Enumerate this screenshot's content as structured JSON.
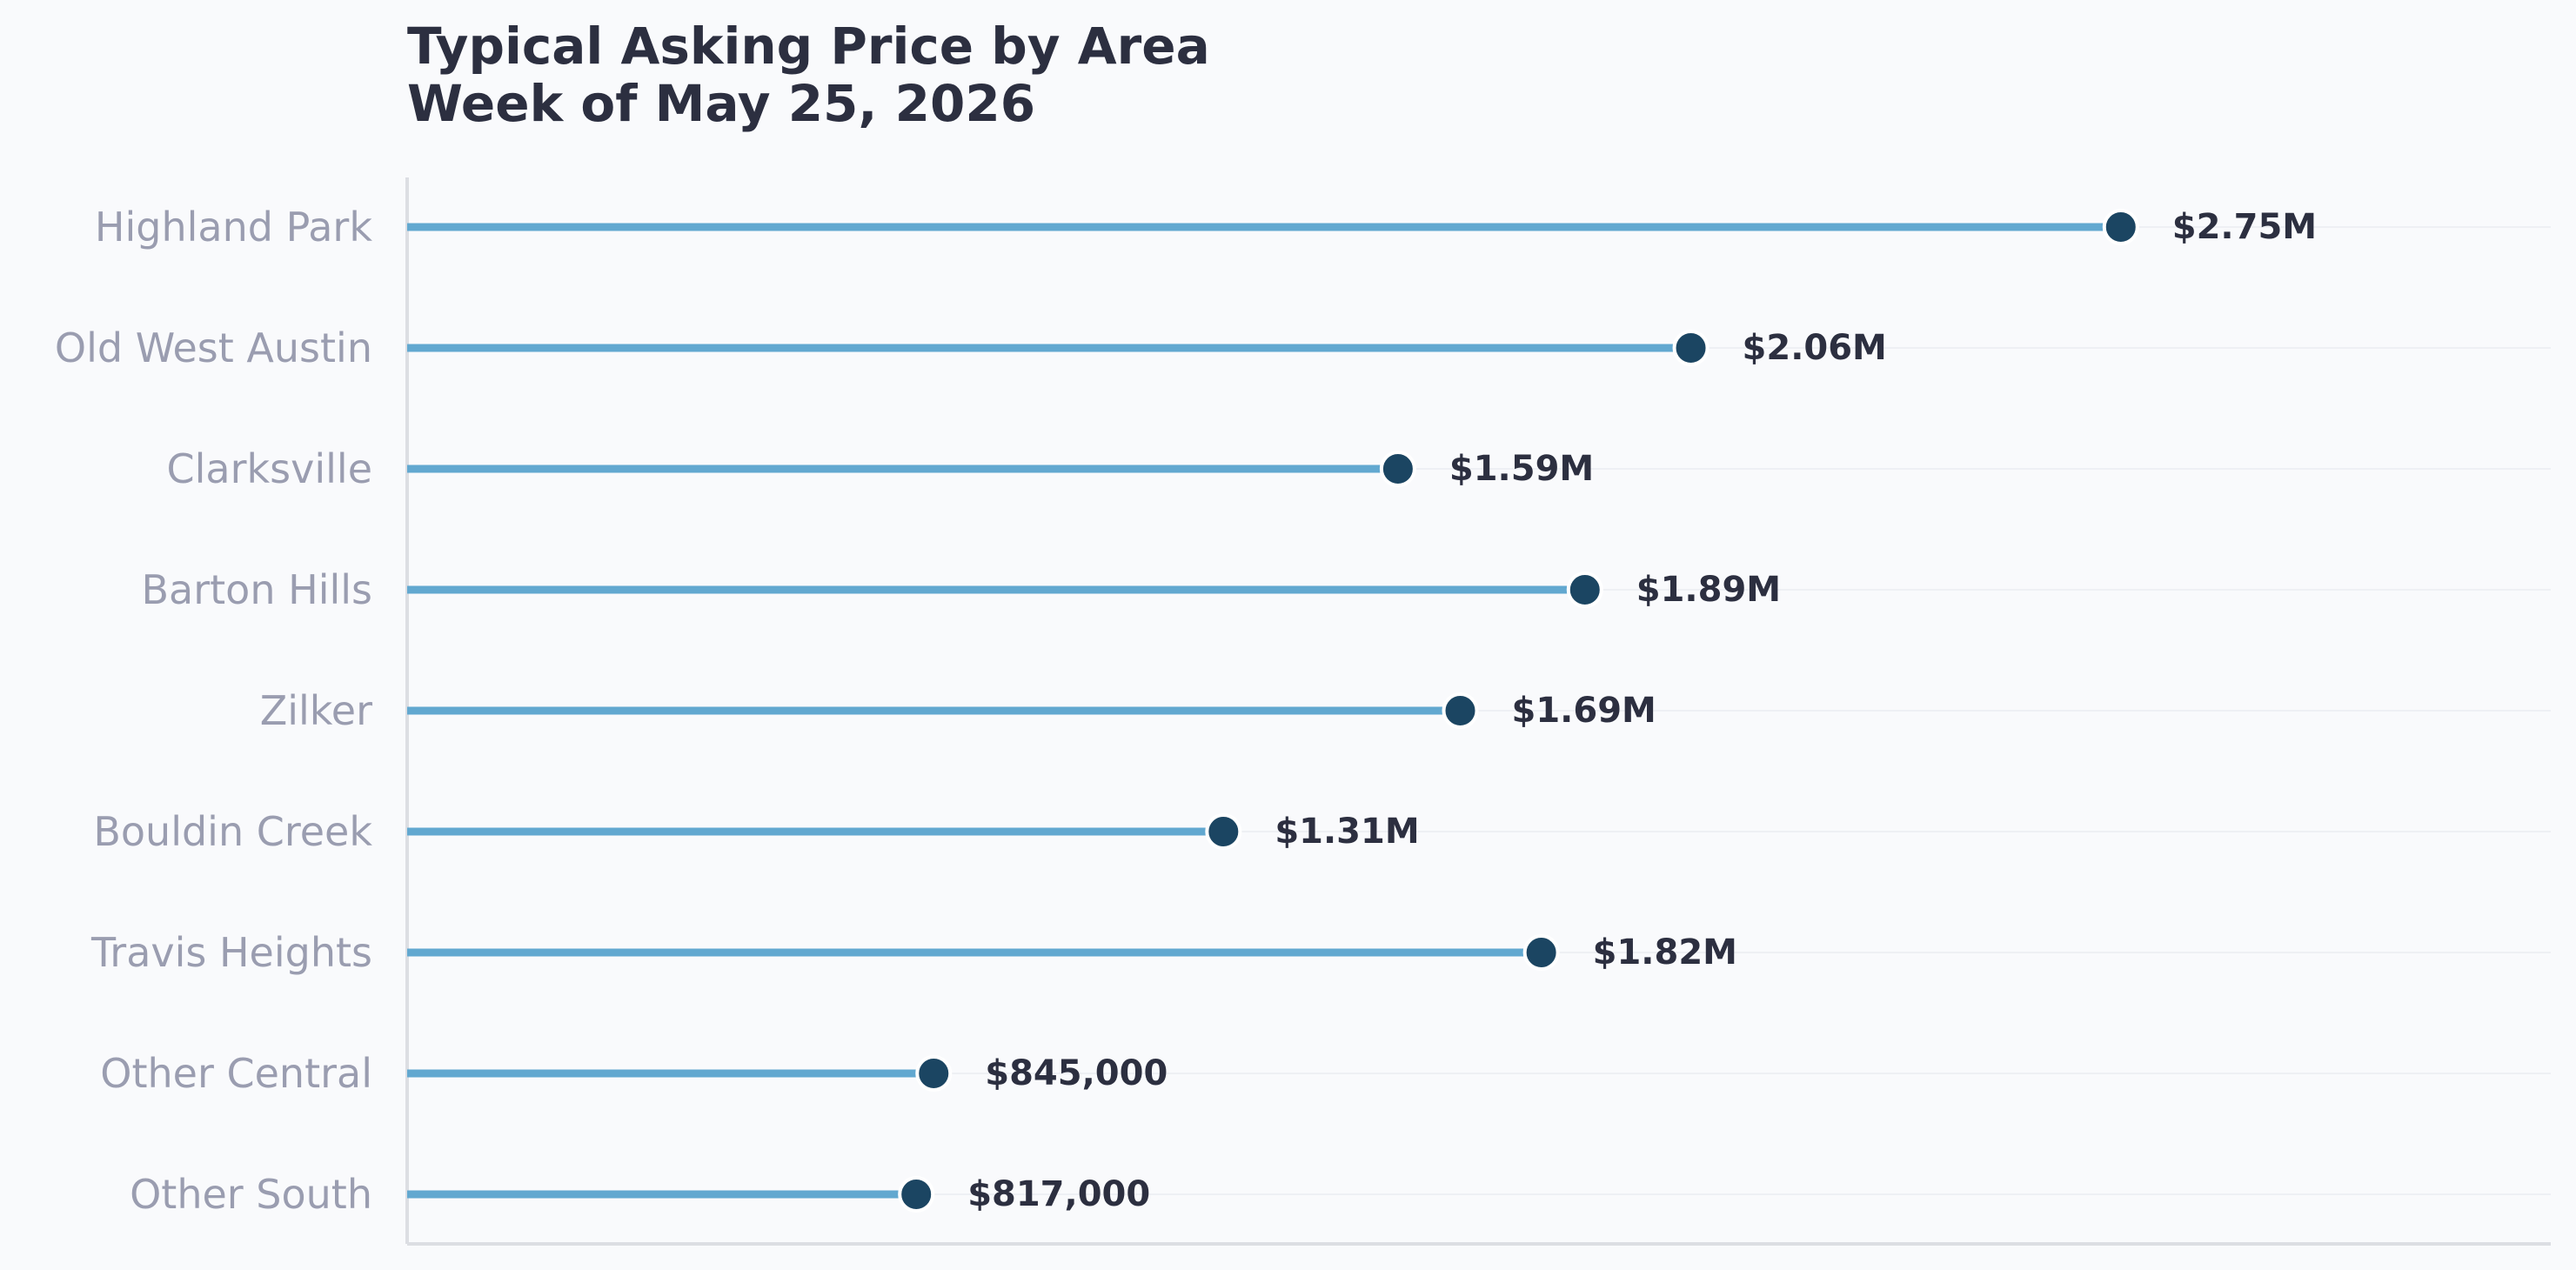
{
  "chart_data": {
    "type": "lollipop",
    "title": "Typical Asking Price by Area",
    "subtitle": "Week of May 25, 2026",
    "categories": [
      "Highland Park",
      "Old West Austin",
      "Clarksville",
      "Barton Hills",
      "Zilker",
      "Bouldin Creek",
      "Travis Heights",
      "Other Central",
      "Other South"
    ],
    "values": [
      2750000,
      2060000,
      1590000,
      1890000,
      1690000,
      1310000,
      1820000,
      845000,
      817000
    ],
    "value_labels": [
      "$2.75M",
      "$2.06M",
      "$1.59M",
      "$1.89M",
      "$1.69M",
      "$1.31M",
      "$1.82M",
      "$845,000",
      "$817,000"
    ],
    "xlim": [
      0,
      3440000
    ],
    "grid": "horizontal, light",
    "colors": {
      "stem": "#62a8d0",
      "dot": "#1b4562",
      "dot_outline": "#ffffff",
      "category_label": "#9a9db0",
      "value_label": "#2c2f40",
      "title": "#2c2f40",
      "grid": "#ebedf1",
      "axis": "#dcdee3",
      "background": "#f9fafc"
    }
  }
}
